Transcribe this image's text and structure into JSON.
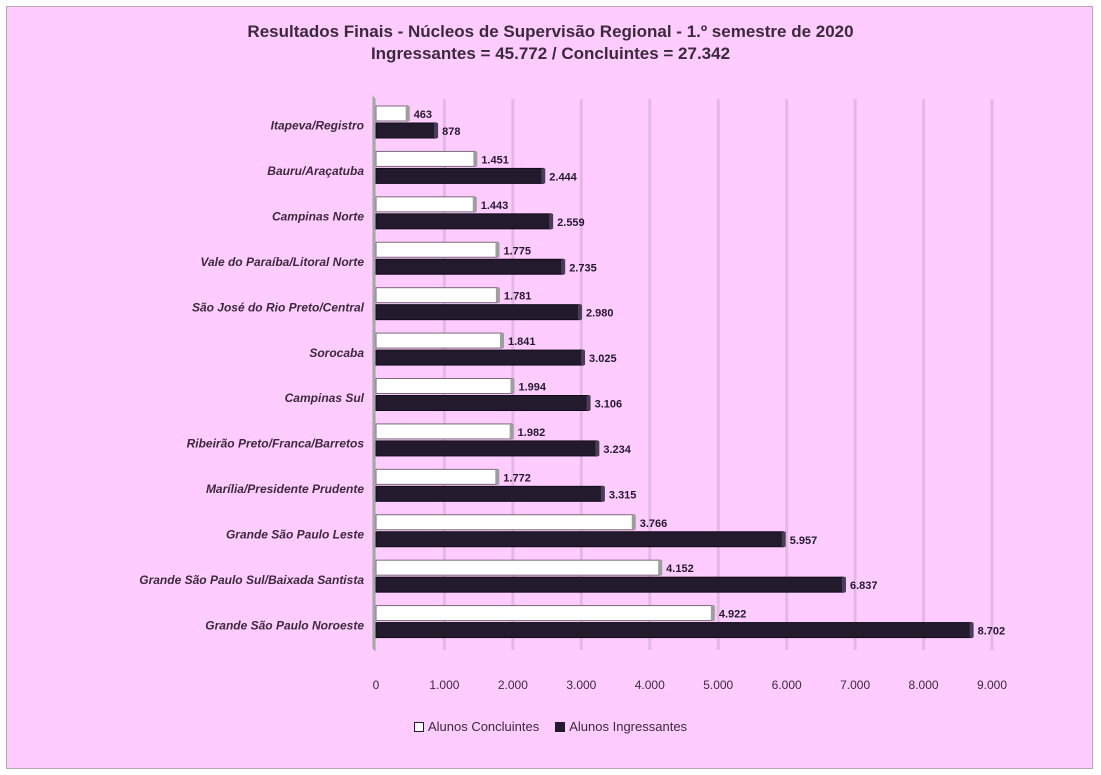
{
  "chart_data": {
    "type": "bar",
    "orientation": "horizontal",
    "title": "Resultados Finais - Núcleos de Supervisão Regional - 1.º semestre de 2020",
    "subtitle": "Ingressantes = 45.772 / Concluintes = 27.342",
    "categories": [
      "Itapeva/Registro",
      "Bauru/Araçatuba",
      "Campinas Norte",
      "Vale do Paraíba/Litoral Norte",
      "São José do Rio Preto/Central",
      "Sorocaba",
      "Campinas Sul",
      "Ribeirão Preto/Franca/Barretos",
      "Marília/Presidente Prudente",
      "Grande São Paulo Leste",
      "Grande São Paulo Sul/Baixada Santista",
      "Grande São Paulo Noroeste"
    ],
    "series": [
      {
        "name": "Alunos Concluintes",
        "color": "#ffffff",
        "values": [
          463,
          1451,
          1443,
          1775,
          1781,
          1841,
          1994,
          1982,
          1772,
          3766,
          4152,
          4922
        ],
        "labels": [
          "463",
          "1.451",
          "1.443",
          "1.775",
          "1.781",
          "1.841",
          "1.994",
          "1.982",
          "1.772",
          "3.766",
          "4.152",
          "4.922"
        ]
      },
      {
        "name": "Alunos Ingressantes",
        "color": "#231a2e",
        "values": [
          878,
          2444,
          2559,
          2735,
          2980,
          3025,
          3106,
          3234,
          3315,
          5957,
          6837,
          8702
        ],
        "labels": [
          "878",
          "2.444",
          "2.559",
          "2.735",
          "2.980",
          "3.025",
          "3.106",
          "3.234",
          "3.315",
          "5.957",
          "6.837",
          "8.702"
        ]
      }
    ],
    "xlim": [
      0,
      9000
    ],
    "xticks": [
      0,
      1000,
      2000,
      3000,
      4000,
      5000,
      6000,
      7000,
      8000,
      9000
    ],
    "xtick_labels": [
      "0",
      "1.000",
      "2.000",
      "3.000",
      "4.000",
      "5.000",
      "6.000",
      "7.000",
      "8.000",
      "9.000"
    ],
    "grid": true,
    "legend_position": "bottom",
    "background_color": "#ffccff"
  }
}
